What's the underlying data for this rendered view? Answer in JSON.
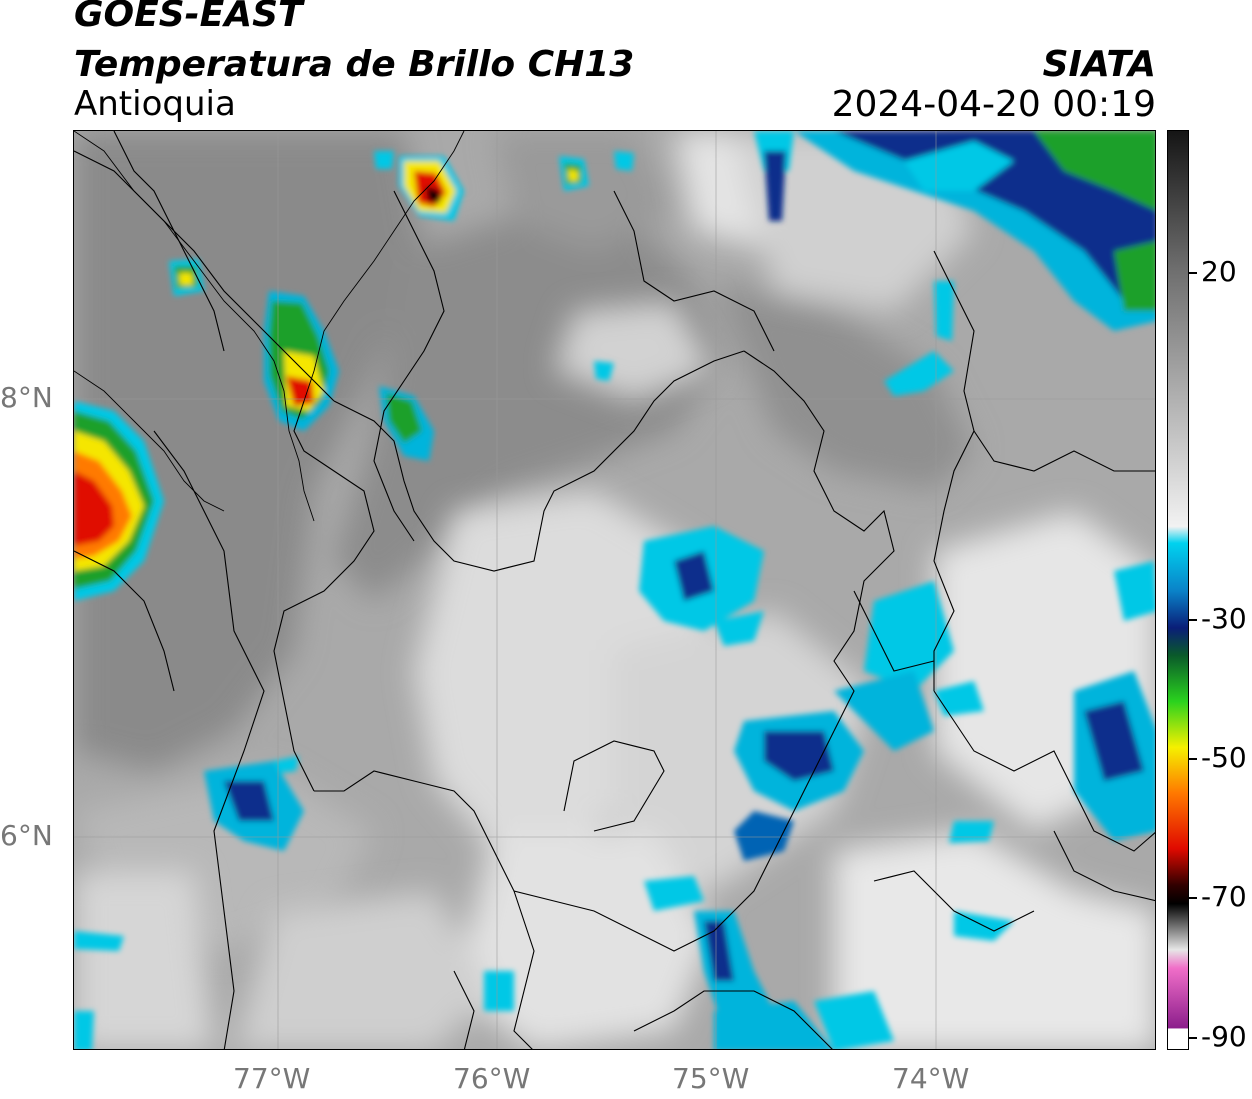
{
  "header": {
    "satellite": "GOES-EAST",
    "product": "Temperatura de Brillo CH13",
    "region": "Antioquia",
    "organization": "SIATA",
    "timestamp": "2024-04-20 00:19"
  },
  "axes": {
    "lon_labels": [
      "77°W",
      "76°W",
      "75°W",
      "74°W"
    ],
    "lat_labels": [
      "8°N",
      "6°N"
    ]
  },
  "colorbar": {
    "tick_labels": [
      "20",
      "-30",
      "-50",
      "-70",
      "-90"
    ],
    "colors": {
      "warm_top": "#202020",
      "warm_bottom": "#f2f2f2",
      "cyan": "#00c8e6",
      "blue": "#0a2d8c",
      "green": "#1ea02a",
      "yellow": "#f5e600",
      "red": "#e01000",
      "black": "#000000",
      "pink": "#e85ab4",
      "purple": "#8c1e8c"
    }
  }
}
